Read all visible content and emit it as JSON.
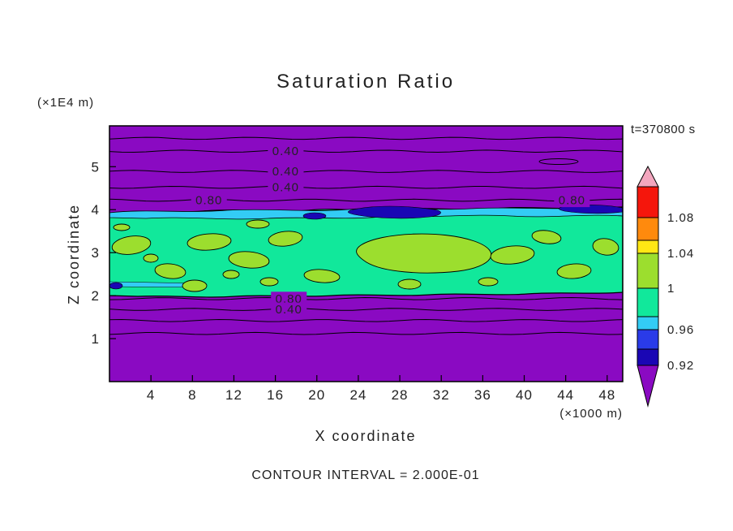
{
  "chart_data": {
    "type": "heatmap",
    "subtype": "filled-contour",
    "title": "Saturation Ratio",
    "timestamp": "t=370800 s",
    "xlabel": "X coordinate",
    "ylabel": "Z coordinate",
    "x_unit_label": "(×1000 m)",
    "z_unit_label": "(×1E4 m)",
    "footer": "CONTOUR INTERVAL = 2.000E-01",
    "x_range": [
      0,
      49.5
    ],
    "z_range": [
      0,
      5.95
    ],
    "x_ticks": [
      4,
      8,
      12,
      16,
      20,
      24,
      28,
      32,
      36,
      40,
      44,
      48
    ],
    "z_ticks": [
      1,
      2,
      3,
      4,
      5
    ],
    "grid": false,
    "legend_position": "right-colorbar",
    "colors": {
      "purple": "#8A0AC2",
      "navy": "#1A06B4",
      "blue": "#2A3BE8",
      "cyan": "#33CCF5",
      "spring_green": "#11E89B",
      "green_yellow": "#9CDE2E",
      "yellow": "#FFE714",
      "orange": "#FF8A0D",
      "red": "#F5160C",
      "pink": "#F3A6BE",
      "contour_line": "#000000"
    },
    "colorbar": {
      "labels": [
        "1.08",
        "1.04",
        "1",
        "0.96",
        "0.92"
      ],
      "segment_colors": [
        "pink",
        "red",
        "orange",
        "yellow",
        "green_yellow",
        "spring_green",
        "cyan",
        "blue",
        "navy",
        "purple"
      ]
    },
    "contour_lines": [
      {
        "z": 5.66,
        "labels": []
      },
      {
        "z": 5.36,
        "labels": [
          {
            "text": "0.40",
            "x": 17.0
          }
        ]
      },
      {
        "z": 4.89,
        "labels": [
          {
            "text": "0.40",
            "x": 17.0
          }
        ]
      },
      {
        "z": 4.52,
        "labels": [
          {
            "text": "0.40",
            "x": 17.0
          }
        ]
      },
      {
        "z": 4.22,
        "labels": [
          {
            "text": "0.80",
            "x": 9.6
          },
          {
            "text": "0.80",
            "x": 44.6
          }
        ]
      },
      {
        "z": 1.93,
        "labels": [
          {
            "text": "0.80",
            "x": 17.3
          }
        ]
      },
      {
        "z": 1.68,
        "labels": [
          {
            "text": "0.40",
            "x": 17.3
          }
        ]
      },
      {
        "z": 1.42,
        "labels": []
      },
      {
        "z": 1.12,
        "labels": []
      }
    ],
    "field_summary": {
      "background": "saturation ratio below 0.92 over most of the domain (purple)",
      "moist_band": "horizontal band between z ≈ 2.0 and z ≈ 4.1 (×1E4 m) with values ≈ 0.96–1.00 (spring green)",
      "patches": "irregular patches of values ≈ 1.00–1.04 (green-yellow) scattered through the band",
      "cyan_strip": "values ≈ 0.96 (cyan) along the top edge of the band",
      "dark_streaks": "values ≈ 0.92 (dark blue) along band top near x ≈ 23–30 and 43–49 (×1000 m)"
    }
  }
}
